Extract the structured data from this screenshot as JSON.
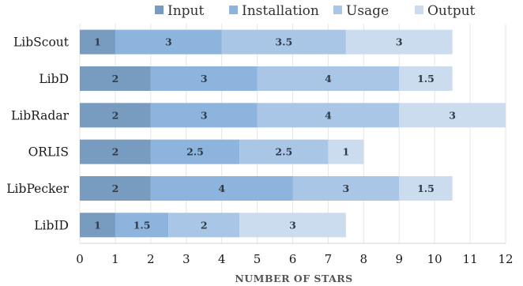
{
  "chart_data": {
    "type": "bar",
    "orientation": "horizontal",
    "stacked": true,
    "categories": [
      "LibScout",
      "LibD",
      "LibRadar",
      "ORLIS",
      "LibPecker",
      "LibID"
    ],
    "series": [
      {
        "name": "Input",
        "color": "#779cbf",
        "values": [
          1,
          2,
          2,
          2,
          2,
          1
        ],
        "labels": [
          "1",
          "2",
          "2",
          "2",
          "2",
          "1"
        ]
      },
      {
        "name": "Installation",
        "color": "#8db4dd",
        "values": [
          3,
          3,
          3,
          2.5,
          4,
          1.5
        ],
        "labels": [
          "3",
          "3",
          "3",
          "2.5",
          "4",
          "1.5"
        ]
      },
      {
        "name": "Usage",
        "color": "#a9c6e6",
        "values": [
          3.5,
          4,
          4,
          2.5,
          3,
          2
        ],
        "labels": [
          "3.5",
          "4",
          "4",
          "2.5",
          "3",
          "2"
        ]
      },
      {
        "name": "Output",
        "color": "#ccdcef",
        "values": [
          3,
          1.5,
          3,
          1,
          1.5,
          3
        ],
        "labels": [
          "3",
          "1.5",
          "3",
          "1",
          "1.5",
          "3"
        ]
      }
    ],
    "xlabel": "NUMBER OF STARS",
    "ylabel": "",
    "xlim": [
      0,
      12
    ],
    "xticks": [
      "0",
      "1",
      "2",
      "3",
      "4",
      "5",
      "6",
      "7",
      "8",
      "9",
      "10",
      "11",
      "12"
    ],
    "grid": "vertical",
    "legend_position": "top"
  }
}
